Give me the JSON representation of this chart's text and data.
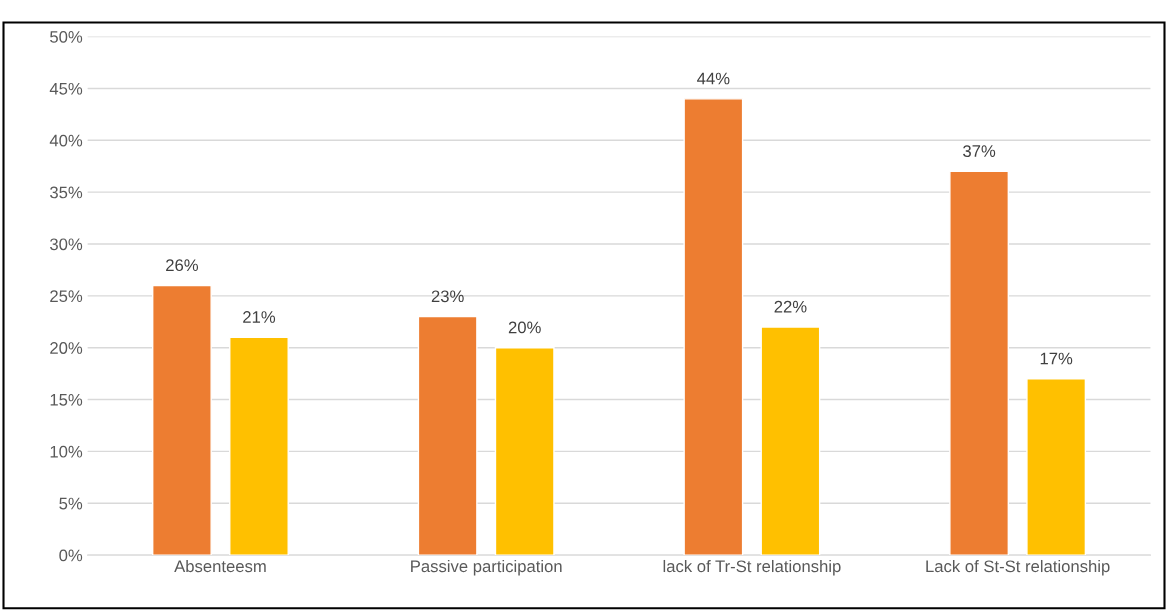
{
  "chart_data": {
    "type": "bar",
    "categories": [
      "Absenteesm",
      "Passive participation",
      "lack of Tr-St relationship",
      "Lack of St-St relationship"
    ],
    "series": [
      {
        "color": "#ed7d31",
        "values": [
          26,
          23,
          44,
          37
        ],
        "value_labels": [
          "26%",
          "23%",
          "44%",
          "37%"
        ]
      },
      {
        "color": "#ffc000",
        "values": [
          21,
          20,
          22,
          17
        ],
        "value_labels": [
          "21%",
          "20%",
          "22%",
          "17%"
        ]
      }
    ],
    "ylim": [
      0,
      50
    ],
    "yticks": [
      {
        "value": 0,
        "label": "0%"
      },
      {
        "value": 5,
        "label": "5%"
      },
      {
        "value": 10,
        "label": "10%"
      },
      {
        "value": 15,
        "label": "15%"
      },
      {
        "value": 20,
        "label": "20%"
      },
      {
        "value": 25,
        "label": "25%"
      },
      {
        "value": 30,
        "label": "30%"
      },
      {
        "value": 35,
        "label": "35%"
      },
      {
        "value": 40,
        "label": "40%"
      },
      {
        "value": 45,
        "label": "45%"
      },
      {
        "value": 50,
        "label": "50%"
      }
    ],
    "grid": "y",
    "legend": false
  }
}
